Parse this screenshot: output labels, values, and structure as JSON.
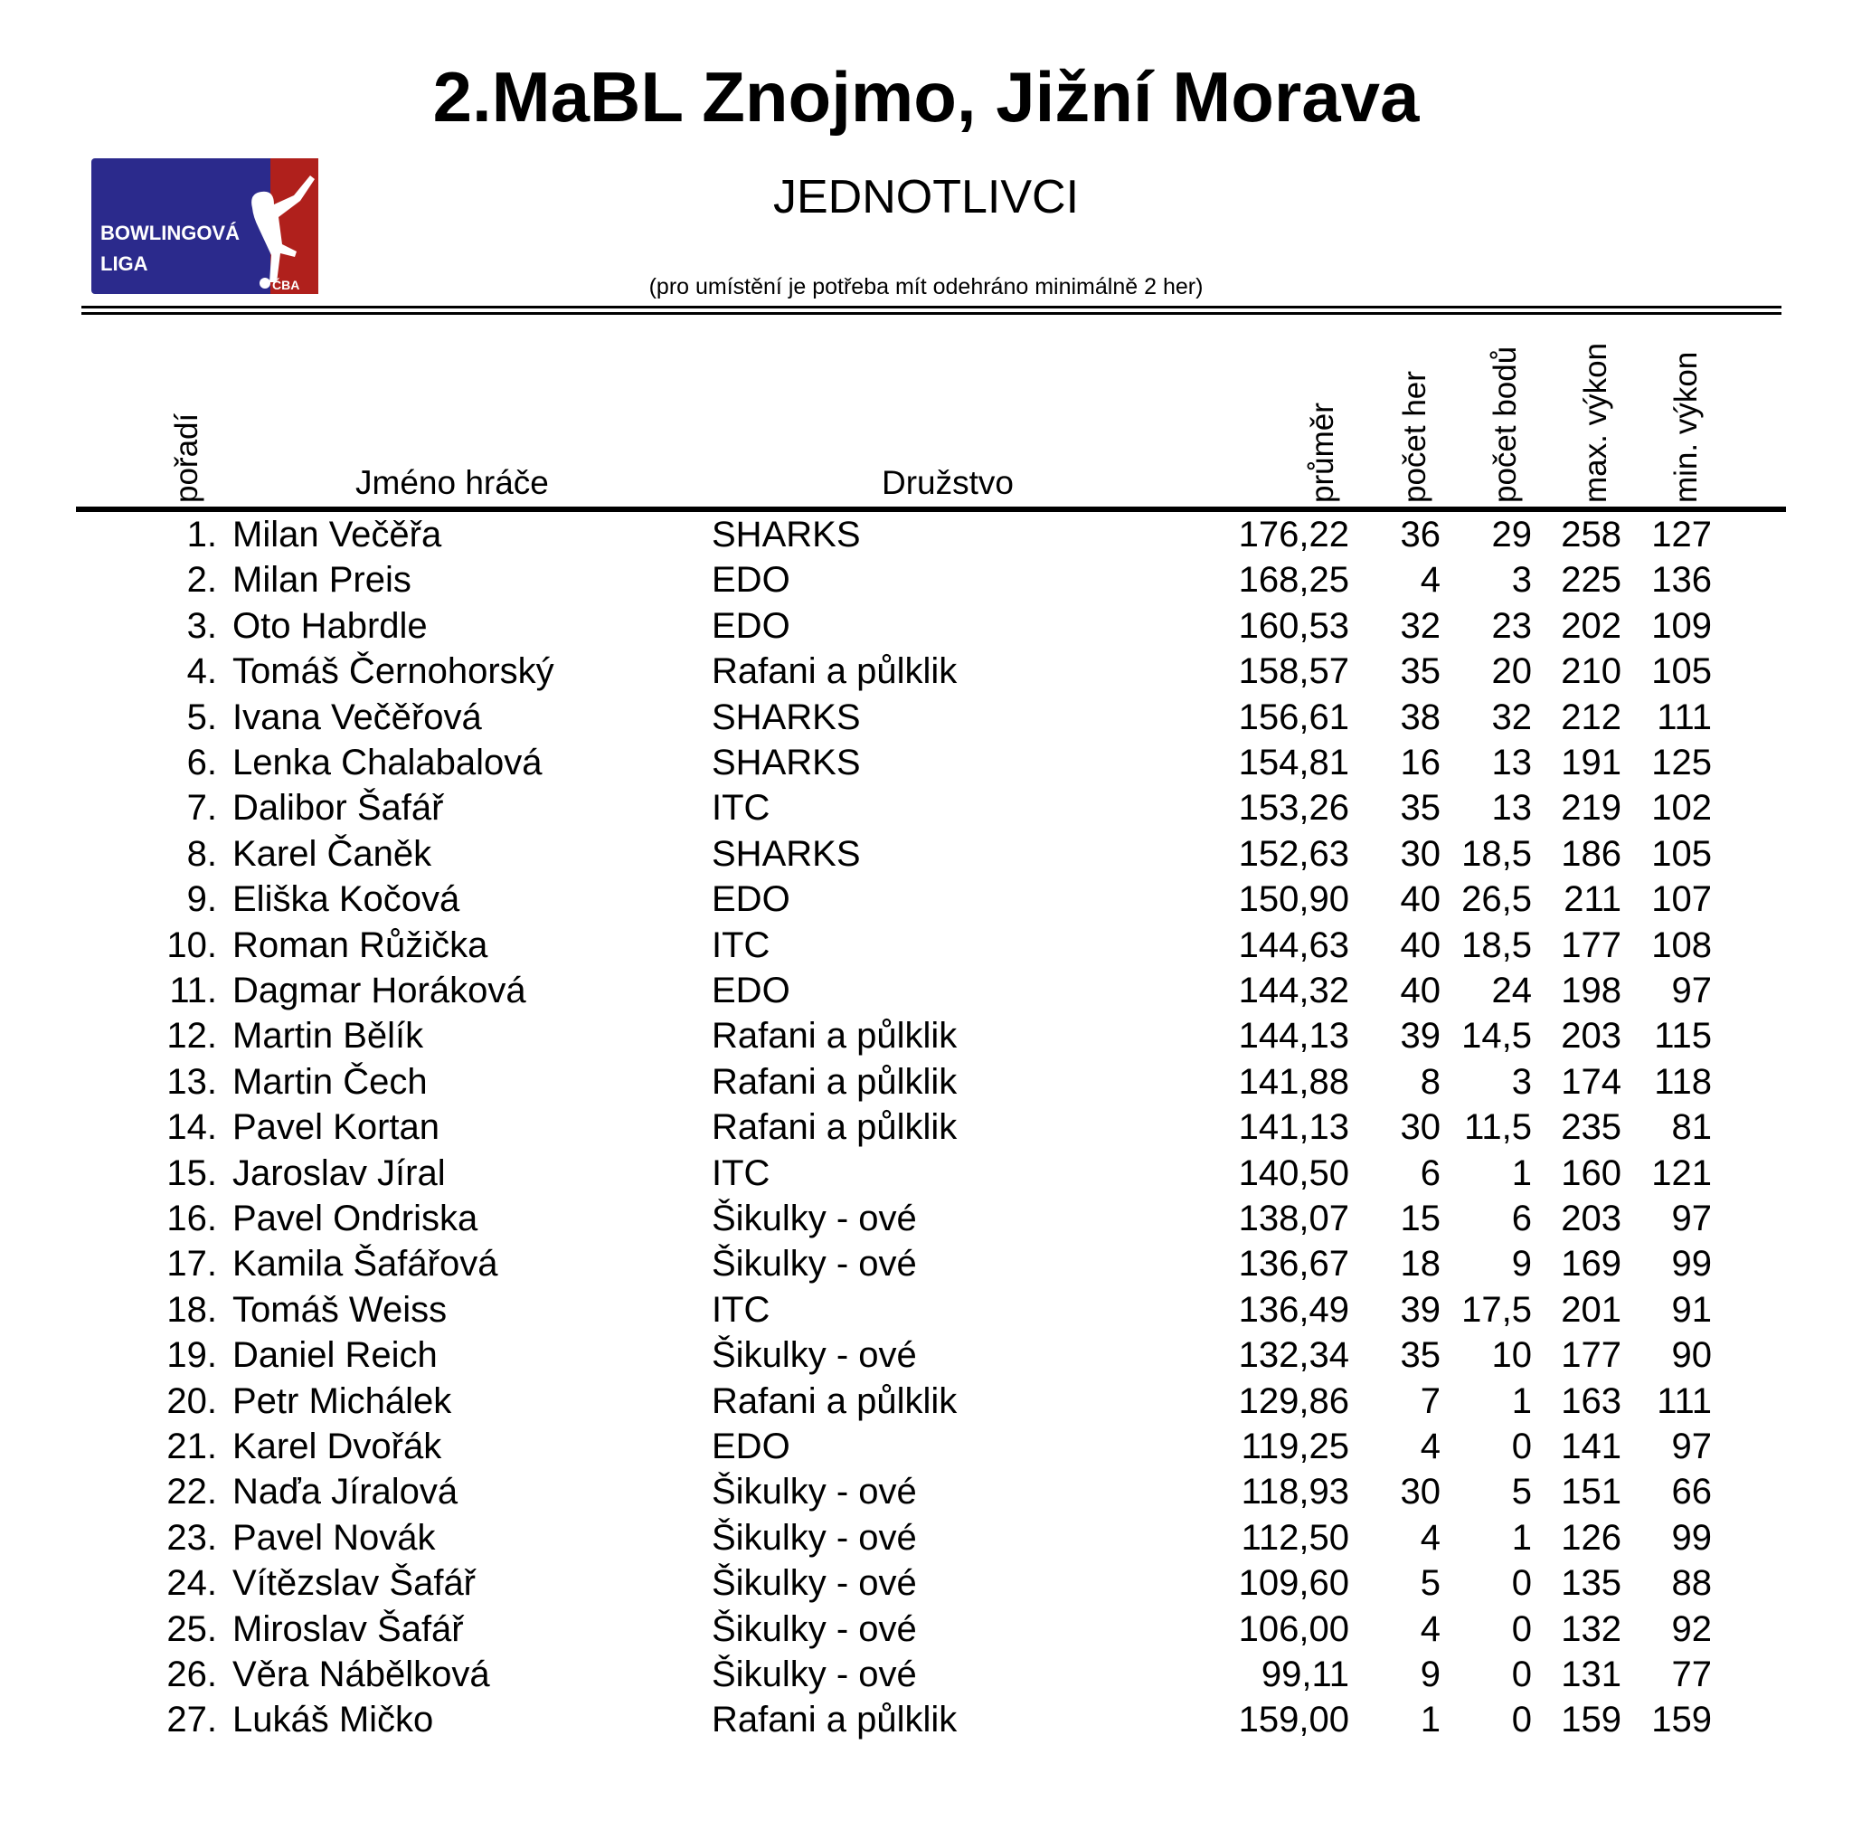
{
  "header": {
    "title": "2.MaBL Znojmo, Jižní Morava",
    "subtitle": "JEDNOTLIVCI",
    "note": "(pro umístění je potřeba mít odehráno minimálně 2 her)",
    "logo": {
      "text_line1": "BOWLINGOVÁ",
      "text_line2": "LIGA",
      "badge": "ČBA",
      "colors": {
        "blue": "#2b2a8c",
        "red": "#b0201c"
      }
    }
  },
  "table": {
    "columns": {
      "rank": "pořadí",
      "name": "Jméno hráče",
      "team": "Družstvo",
      "avg": "průměr",
      "games": "počet her",
      "points": "počet bodů",
      "max": "max. výkon",
      "min": "min. výkon"
    },
    "rows": [
      {
        "rank": "1.",
        "name": "Milan Večěřa",
        "team": "SHARKS",
        "avg": "176,22",
        "games": "36",
        "points": "29",
        "max": "258",
        "min": "127"
      },
      {
        "rank": "2.",
        "name": "Milan Preis",
        "team": "EDO",
        "avg": "168,25",
        "games": "4",
        "points": "3",
        "max": "225",
        "min": "136"
      },
      {
        "rank": "3.",
        "name": "Oto Habrdle",
        "team": "EDO",
        "avg": "160,53",
        "games": "32",
        "points": "23",
        "max": "202",
        "min": "109"
      },
      {
        "rank": "4.",
        "name": "Tomáš Černohorský",
        "team": "Rafani a půlklik",
        "avg": "158,57",
        "games": "35",
        "points": "20",
        "max": "210",
        "min": "105"
      },
      {
        "rank": "5.",
        "name": "Ivana Večěřová",
        "team": "SHARKS",
        "avg": "156,61",
        "games": "38",
        "points": "32",
        "max": "212",
        "min": "111"
      },
      {
        "rank": "6.",
        "name": "Lenka Chalabalová",
        "team": "SHARKS",
        "avg": "154,81",
        "games": "16",
        "points": "13",
        "max": "191",
        "min": "125"
      },
      {
        "rank": "7.",
        "name": "Dalibor Šafář",
        "team": "ITC",
        "avg": "153,26",
        "games": "35",
        "points": "13",
        "max": "219",
        "min": "102"
      },
      {
        "rank": "8.",
        "name": "Karel Čaněk",
        "team": "SHARKS",
        "avg": "152,63",
        "games": "30",
        "points": "18,5",
        "max": "186",
        "min": "105"
      },
      {
        "rank": "9.",
        "name": "Eliška Kočová",
        "team": "EDO",
        "avg": "150,90",
        "games": "40",
        "points": "26,5",
        "max": "211",
        "min": "107"
      },
      {
        "rank": "10.",
        "name": "Roman Růžička",
        "team": "ITC",
        "avg": "144,63",
        "games": "40",
        "points": "18,5",
        "max": "177",
        "min": "108"
      },
      {
        "rank": "11.",
        "name": "Dagmar Horáková",
        "team": "EDO",
        "avg": "144,32",
        "games": "40",
        "points": "24",
        "max": "198",
        "min": "97"
      },
      {
        "rank": "12.",
        "name": "Martin Bělík",
        "team": "Rafani a půlklik",
        "avg": "144,13",
        "games": "39",
        "points": "14,5",
        "max": "203",
        "min": "115"
      },
      {
        "rank": "13.",
        "name": "Martin Čech",
        "team": "Rafani a půlklik",
        "avg": "141,88",
        "games": "8",
        "points": "3",
        "max": "174",
        "min": "118"
      },
      {
        "rank": "14.",
        "name": "Pavel Kortan",
        "team": "Rafani a půlklik",
        "avg": "141,13",
        "games": "30",
        "points": "11,5",
        "max": "235",
        "min": "81"
      },
      {
        "rank": "15.",
        "name": "Jaroslav Jíral",
        "team": "ITC",
        "avg": "140,50",
        "games": "6",
        "points": "1",
        "max": "160",
        "min": "121"
      },
      {
        "rank": "16.",
        "name": "Pavel Ondriska",
        "team": "Šikulky - ové",
        "avg": "138,07",
        "games": "15",
        "points": "6",
        "max": "203",
        "min": "97"
      },
      {
        "rank": "17.",
        "name": "Kamila Šafářová",
        "team": "Šikulky - ové",
        "avg": "136,67",
        "games": "18",
        "points": "9",
        "max": "169",
        "min": "99"
      },
      {
        "rank": "18.",
        "name": "Tomáš Weiss",
        "team": "ITC",
        "avg": "136,49",
        "games": "39",
        "points": "17,5",
        "max": "201",
        "min": "91"
      },
      {
        "rank": "19.",
        "name": "Daniel Reich",
        "team": "Šikulky - ové",
        "avg": "132,34",
        "games": "35",
        "points": "10",
        "max": "177",
        "min": "90"
      },
      {
        "rank": "20.",
        "name": "Petr Michálek",
        "team": "Rafani a půlklik",
        "avg": "129,86",
        "games": "7",
        "points": "1",
        "max": "163",
        "min": "111"
      },
      {
        "rank": "21.",
        "name": "Karel Dvořák",
        "team": "EDO",
        "avg": "119,25",
        "games": "4",
        "points": "0",
        "max": "141",
        "min": "97"
      },
      {
        "rank": "22.",
        "name": "Naďa Jíralová",
        "team": "Šikulky - ové",
        "avg": "118,93",
        "games": "30",
        "points": "5",
        "max": "151",
        "min": "66"
      },
      {
        "rank": "23.",
        "name": "Pavel Novák",
        "team": "Šikulky - ové",
        "avg": "112,50",
        "games": "4",
        "points": "1",
        "max": "126",
        "min": "99"
      },
      {
        "rank": "24.",
        "name": "Vítězslav Šafář",
        "team": "Šikulky - ové",
        "avg": "109,60",
        "games": "5",
        "points": "0",
        "max": "135",
        "min": "88"
      },
      {
        "rank": "25.",
        "name": "Miroslav Šafář",
        "team": "Šikulky - ové",
        "avg": "106,00",
        "games": "4",
        "points": "0",
        "max": "132",
        "min": "92"
      },
      {
        "rank": "26.",
        "name": "Věra Nábělková",
        "team": "Šikulky - ové",
        "avg": "99,11",
        "games": "9",
        "points": "0",
        "max": "131",
        "min": "77"
      },
      {
        "rank": "27.",
        "name": "Lukáš Mičko",
        "team": "Rafani a půlklik",
        "avg": "159,00",
        "games": "1",
        "points": "0",
        "max": "159",
        "min": "159"
      }
    ]
  }
}
